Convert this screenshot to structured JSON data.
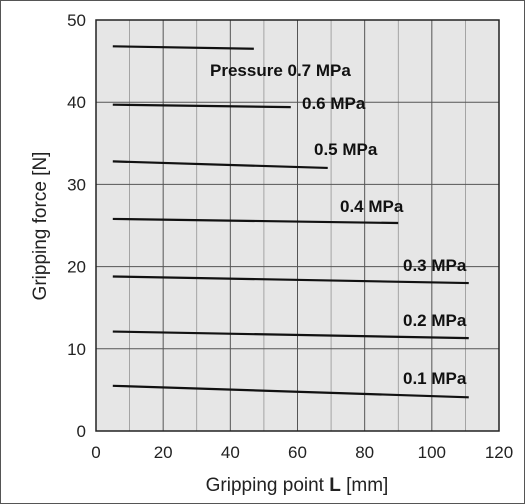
{
  "chart_data": {
    "type": "line",
    "xlabel_prefix": "Gripping point ",
    "xlabel_bold": "L",
    "xlabel_suffix": " [mm]",
    "ylabel": "Gripping force [N]",
    "xlim": [
      0,
      120
    ],
    "ylim": [
      0,
      50
    ],
    "xticks": [
      "0",
      "20",
      "40",
      "60",
      "80",
      "100",
      "120"
    ],
    "yticks": [
      "0",
      "10",
      "20",
      "30",
      "40",
      "50"
    ],
    "grid": true,
    "series": [
      {
        "name": "Pressure 0.7 MPa",
        "x": [
          5,
          47
        ],
        "y": [
          46.8,
          46.5
        ]
      },
      {
        "name": "0.6 MPa",
        "x": [
          5,
          58
        ],
        "y": [
          39.7,
          39.4
        ]
      },
      {
        "name": "0.5 MPa",
        "x": [
          5,
          69
        ],
        "y": [
          32.8,
          32.0
        ]
      },
      {
        "name": "0.4 MPa",
        "x": [
          5,
          90
        ],
        "y": [
          25.8,
          25.3
        ]
      },
      {
        "name": "0.3 MPa",
        "x": [
          5,
          111
        ],
        "y": [
          18.8,
          18.0
        ]
      },
      {
        "name": "0.2 MPa",
        "x": [
          5,
          111
        ],
        "y": [
          12.1,
          11.3
        ]
      },
      {
        "name": "0.1 MPa",
        "x": [
          5,
          111
        ],
        "y": [
          5.5,
          4.1
        ]
      }
    ],
    "colors": {
      "line": "#111111",
      "grid": "#333333",
      "background": "#e6e6e6"
    }
  }
}
